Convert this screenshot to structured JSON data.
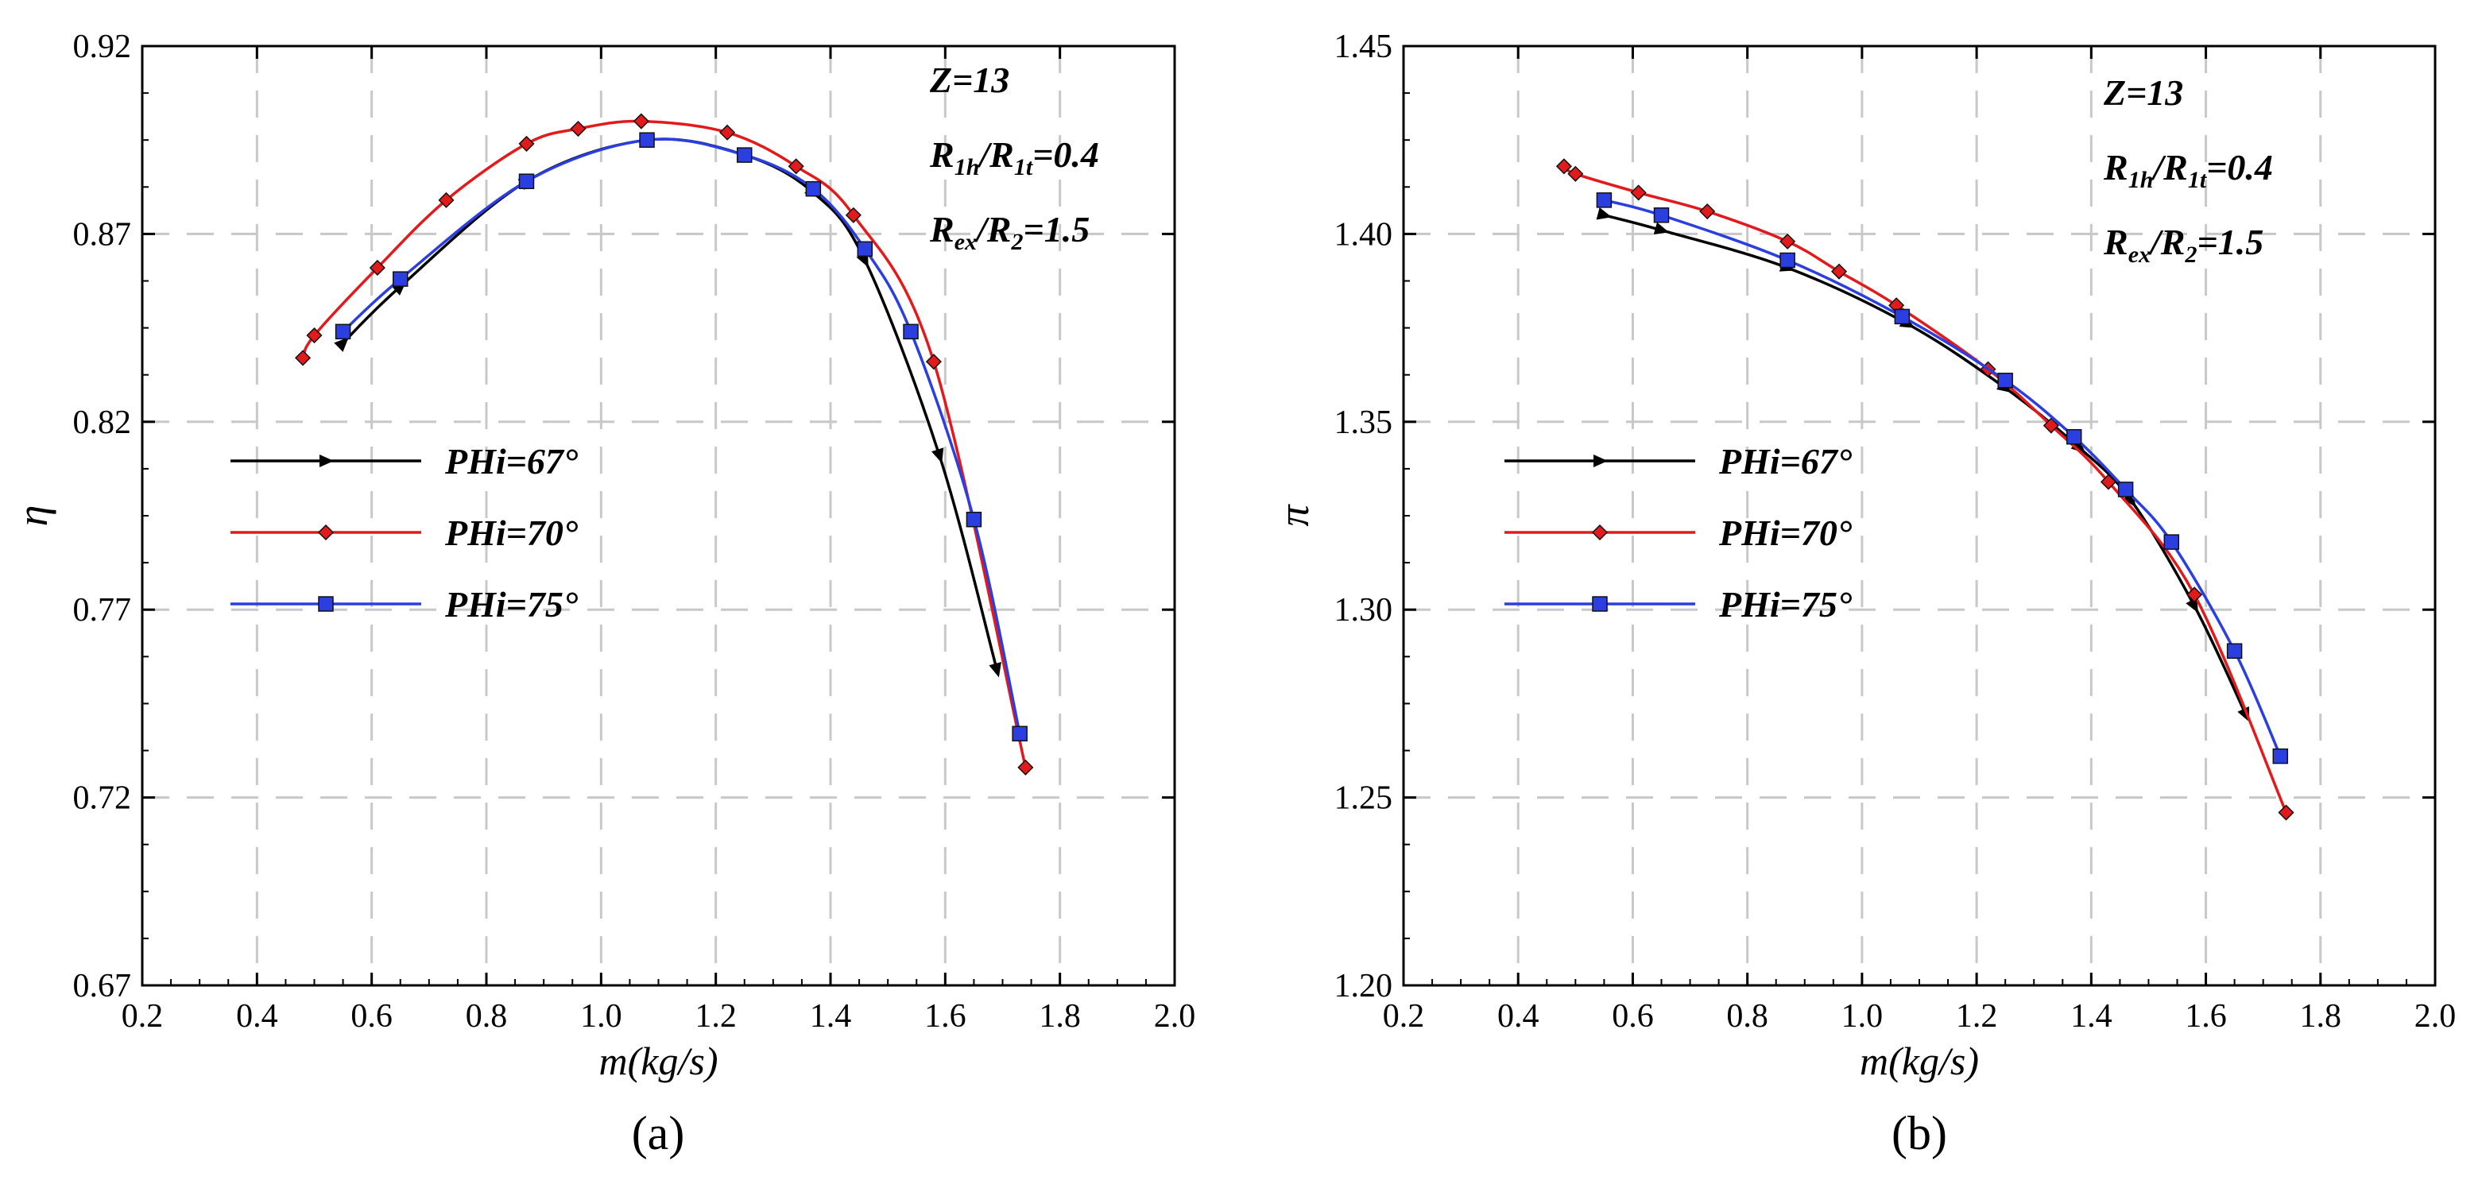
{
  "colors": {
    "series_67": "#000000",
    "series_70": "#e31a1c",
    "series_75": "#2b3fe0",
    "grid": "#c8c8c8"
  },
  "chart_data": [
    {
      "type": "line",
      "panel_label": "(a)",
      "xlabel": "m(kg/s)",
      "ylabel": "η",
      "xlim": [
        0.2,
        2.0
      ],
      "ylim": [
        0.67,
        0.92
      ],
      "xticks": [
        "0.2",
        "0.4",
        "0.6",
        "0.8",
        "1.0",
        "1.2",
        "1.4",
        "1.6",
        "1.8",
        "2.0"
      ],
      "yticks": [
        "0.67",
        "0.72",
        "0.77",
        "0.82",
        "0.87",
        "0.92"
      ],
      "grid": true,
      "legend_position": "middle-left",
      "annotations": [
        "Z=13",
        "R1h/R1t=0.4",
        "Rex/R2=1.5"
      ],
      "series": [
        {
          "name": "PHi=67°",
          "marker": "triangle",
          "x": [
            0.55,
            0.65,
            0.87,
            1.08,
            1.25,
            1.37,
            1.46,
            1.59,
            1.69
          ],
          "y": [
            0.841,
            0.856,
            0.884,
            0.895,
            0.891,
            0.881,
            0.863,
            0.811,
            0.754
          ]
        },
        {
          "name": "PHi=70°",
          "marker": "diamond",
          "x": [
            0.48,
            0.5,
            0.61,
            0.73,
            0.87,
            0.96,
            1.07,
            1.22,
            1.34,
            1.44,
            1.58,
            1.74
          ],
          "y": [
            0.837,
            0.843,
            0.861,
            0.879,
            0.894,
            0.898,
            0.9,
            0.897,
            0.888,
            0.875,
            0.836,
            0.728
          ]
        },
        {
          "name": "PHi=75°",
          "marker": "square",
          "x": [
            0.55,
            0.65,
            0.87,
            1.08,
            1.25,
            1.37,
            1.46,
            1.54,
            1.65,
            1.73
          ],
          "y": [
            0.844,
            0.858,
            0.884,
            0.895,
            0.891,
            0.882,
            0.866,
            0.844,
            0.794,
            0.737
          ]
        }
      ]
    },
    {
      "type": "line",
      "panel_label": "(b)",
      "xlabel": "m(kg/s)",
      "ylabel": "π",
      "xlim": [
        0.2,
        2.0
      ],
      "ylim": [
        1.2,
        1.45
      ],
      "xticks": [
        "0.2",
        "0.4",
        "0.6",
        "0.8",
        "1.0",
        "1.2",
        "1.4",
        "1.6",
        "1.8",
        "2.0"
      ],
      "yticks": [
        "1.20",
        "1.25",
        "1.30",
        "1.35",
        "1.40",
        "1.45"
      ],
      "grid": true,
      "legend_position": "middle-left",
      "annotations": [
        "Z=13",
        "R1h/R1t=0.4",
        "Rex/R2=1.5"
      ],
      "series": [
        {
          "name": "PHi=67°",
          "marker": "triangle",
          "x": [
            0.55,
            0.65,
            0.87,
            1.08,
            1.25,
            1.38,
            1.47,
            1.58,
            1.67
          ],
          "y": [
            1.405,
            1.401,
            1.391,
            1.376,
            1.359,
            1.343,
            1.329,
            1.301,
            1.272
          ]
        },
        {
          "name": "PHi=70°",
          "marker": "diamond",
          "x": [
            0.48,
            0.5,
            0.61,
            0.73,
            0.87,
            0.96,
            1.06,
            1.22,
            1.33,
            1.43,
            1.58,
            1.74
          ],
          "y": [
            1.418,
            1.416,
            1.411,
            1.406,
            1.398,
            1.39,
            1.381,
            1.364,
            1.349,
            1.334,
            1.304,
            1.246
          ]
        },
        {
          "name": "PHi=75°",
          "marker": "square",
          "x": [
            0.55,
            0.65,
            0.87,
            1.07,
            1.25,
            1.37,
            1.46,
            1.54,
            1.65,
            1.73
          ],
          "y": [
            1.409,
            1.405,
            1.393,
            1.378,
            1.361,
            1.346,
            1.332,
            1.318,
            1.289,
            1.261
          ]
        }
      ]
    }
  ]
}
